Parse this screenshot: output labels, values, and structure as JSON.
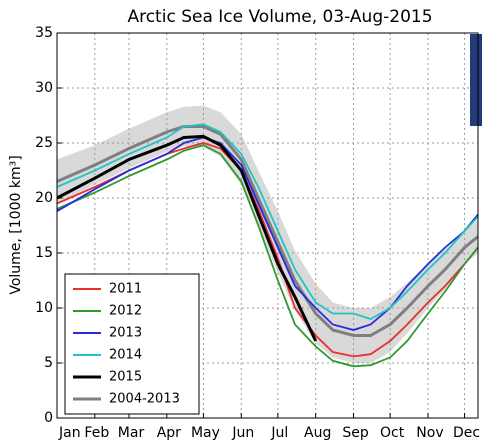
{
  "chart_data": {
    "type": "line",
    "title": "Arctic Sea Ice Volume, 03-Aug-2015",
    "y_label": "Volume, [1000 km³]",
    "x": [
      1,
      32,
      60,
      91,
      105,
      121,
      135,
      152,
      166,
      182,
      196,
      213,
      227,
      244,
      258,
      274,
      288,
      305,
      319,
      335,
      346
    ],
    "xlim": [
      1,
      346
    ],
    "xticks": [
      {
        "value": 1,
        "label": "Jan"
      },
      {
        "value": 32,
        "label": "Feb"
      },
      {
        "value": 60,
        "label": "Mar"
      },
      {
        "value": 91,
        "label": "Apr"
      },
      {
        "value": 121,
        "label": "May"
      },
      {
        "value": 152,
        "label": "Jun"
      },
      {
        "value": 182,
        "label": "Jul"
      },
      {
        "value": 213,
        "label": "Aug"
      },
      {
        "value": 244,
        "label": "Sep"
      },
      {
        "value": 274,
        "label": "Oct"
      },
      {
        "value": 305,
        "label": "Nov"
      },
      {
        "value": 335,
        "label": "Dec"
      }
    ],
    "ylim": [
      0,
      35
    ],
    "yticks": [
      0,
      5,
      10,
      15,
      20,
      25,
      30,
      35
    ],
    "grid": true,
    "legend": "lower left",
    "series": [
      {
        "name": "2011",
        "color": "#e8312f",
        "values": [
          19.5,
          21,
          22.5,
          24,
          24.5,
          25,
          24.5,
          22.5,
          19,
          14.5,
          10,
          7.5,
          6,
          5.6,
          5.8,
          7,
          8.5,
          10.5,
          12,
          14,
          15.5
        ]
      },
      {
        "name": "2012",
        "color": "#2f9a2f",
        "values": [
          19,
          20.5,
          22,
          23.5,
          24.3,
          24.8,
          24,
          21.5,
          17.5,
          12.5,
          8.5,
          6.5,
          5.2,
          4.7,
          4.8,
          5.5,
          7,
          9.5,
          11.5,
          14,
          15.5
        ]
      },
      {
        "name": "2013",
        "color": "#2a2ae0",
        "values": [
          18.8,
          20.8,
          22.5,
          24,
          25,
          25.5,
          25,
          23,
          19.5,
          15.5,
          12,
          10,
          8.5,
          8,
          8.5,
          10,
          12,
          14,
          15.5,
          17,
          18.5
        ]
      },
      {
        "name": "2014",
        "color": "#22c4c4",
        "values": [
          21,
          22.5,
          24,
          25.5,
          26.5,
          26.7,
          26,
          24,
          21,
          17,
          13.5,
          10.5,
          9.5,
          9.5,
          9,
          10,
          11.5,
          13.5,
          15,
          17,
          18.3
        ]
      },
      {
        "name": "2015",
        "color": "#000000",
        "values": [
          20,
          21.8,
          23.5,
          24.8,
          25.5,
          25.6,
          24.8,
          22.5,
          18.5,
          14,
          11,
          7,
          null,
          null,
          null,
          null,
          null,
          null,
          null,
          null,
          null
        ]
      },
      {
        "name": "2004-2013",
        "color": "#7f7f7f",
        "band_color": "#d9d9d9",
        "values": [
          21.5,
          23,
          24.5,
          26,
          26.5,
          26.5,
          25.8,
          23.5,
          20,
          16,
          12.5,
          9.5,
          8,
          7.5,
          7.5,
          8.5,
          10,
          12,
          13.5,
          15.5,
          16.5
        ],
        "upper": [
          23.5,
          24.8,
          26.3,
          27.8,
          28.3,
          28.4,
          27.8,
          25.8,
          22.5,
          18.8,
          15.2,
          12.2,
          10.5,
          10,
          10,
          11,
          12.3,
          14,
          15.3,
          17,
          18
        ],
        "lower": [
          19.5,
          21.2,
          22.7,
          24.2,
          24.7,
          24.6,
          23.8,
          21.2,
          17.5,
          13.2,
          9.8,
          6.8,
          5.5,
          5,
          5,
          6,
          7.7,
          10,
          11.7,
          14,
          15
        ]
      }
    ]
  }
}
